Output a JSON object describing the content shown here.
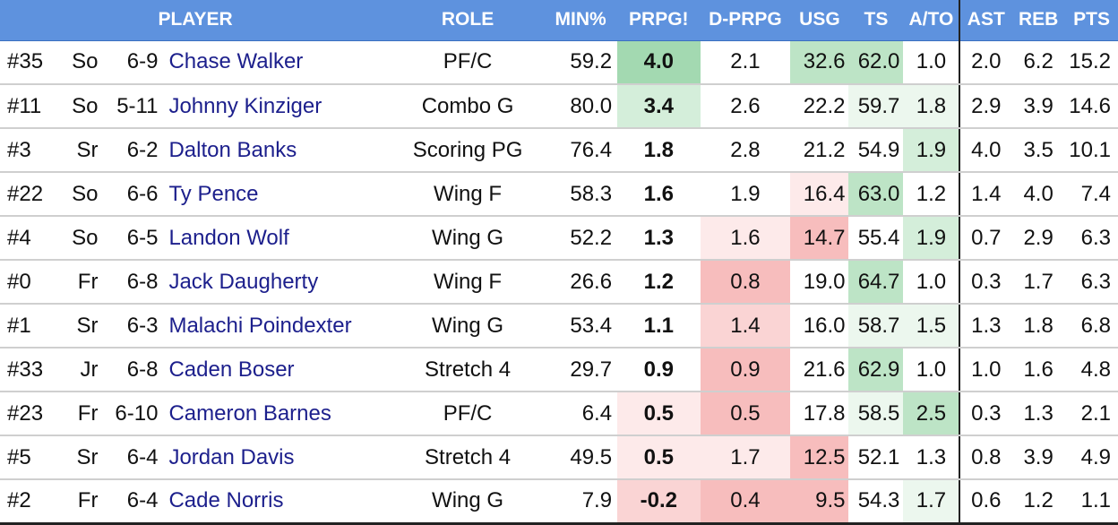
{
  "headers": {
    "player": "PLAYER",
    "role": "ROLE",
    "min": "MIN%",
    "prpg": "PRPG!",
    "dprpg": "D-PRPG",
    "usg": "USG",
    "ts": "TS",
    "ato": "A/TO",
    "ast": "AST",
    "reb": "REB",
    "pts": "PTS"
  },
  "colors": {
    "header_bg": "#5e92de",
    "name_link": "#1c1f8c",
    "good_shades": [
      "#ffffff",
      "#ecf7ee",
      "#d4eeda",
      "#bde4c6",
      "#a3d9b1"
    ],
    "bad_shades": [
      "#ffffff",
      "#fdeaea",
      "#fad4d4",
      "#f7bdbd",
      "#f4a8a8"
    ]
  },
  "rows": [
    {
      "num": "#35",
      "cls": "So",
      "ht": "6-9",
      "name": "Chase Walker",
      "role": "PF/C",
      "min": "59.2",
      "prpg": "4.0",
      "dprpg": "2.1",
      "usg": "32.6",
      "ts": "62.0",
      "ato": "1.0",
      "ast": "2.0",
      "reb": "6.2",
      "pts": "15.2"
    },
    {
      "num": "#11",
      "cls": "So",
      "ht": "5-11",
      "name": "Johnny Kinziger",
      "role": "Combo G",
      "min": "80.0",
      "prpg": "3.4",
      "dprpg": "2.6",
      "usg": "22.2",
      "ts": "59.7",
      "ato": "1.8",
      "ast": "2.9",
      "reb": "3.9",
      "pts": "14.6"
    },
    {
      "num": "#3",
      "cls": "Sr",
      "ht": "6-2",
      "name": "Dalton Banks",
      "role": "Scoring PG",
      "min": "76.4",
      "prpg": "1.8",
      "dprpg": "2.8",
      "usg": "21.2",
      "ts": "54.9",
      "ato": "1.9",
      "ast": "4.0",
      "reb": "3.5",
      "pts": "10.1"
    },
    {
      "num": "#22",
      "cls": "So",
      "ht": "6-6",
      "name": "Ty Pence",
      "role": "Wing F",
      "min": "58.3",
      "prpg": "1.6",
      "dprpg": "1.9",
      "usg": "16.4",
      "ts": "63.0",
      "ato": "1.2",
      "ast": "1.4",
      "reb": "4.0",
      "pts": "7.4"
    },
    {
      "num": "#4",
      "cls": "So",
      "ht": "6-5",
      "name": "Landon Wolf",
      "role": "Wing G",
      "min": "52.2",
      "prpg": "1.3",
      "dprpg": "1.6",
      "usg": "14.7",
      "ts": "55.4",
      "ato": "1.9",
      "ast": "0.7",
      "reb": "2.9",
      "pts": "6.3"
    },
    {
      "num": "#0",
      "cls": "Fr",
      "ht": "6-8",
      "name": "Jack Daugherty",
      "role": "Wing F",
      "min": "26.6",
      "prpg": "1.2",
      "dprpg": "0.8",
      "usg": "19.0",
      "ts": "64.7",
      "ato": "1.0",
      "ast": "0.3",
      "reb": "1.7",
      "pts": "6.3"
    },
    {
      "num": "#1",
      "cls": "Sr",
      "ht": "6-3",
      "name": "Malachi Poindexter",
      "role": "Wing G",
      "min": "53.4",
      "prpg": "1.1",
      "dprpg": "1.4",
      "usg": "16.0",
      "ts": "58.7",
      "ato": "1.5",
      "ast": "1.3",
      "reb": "1.8",
      "pts": "6.8"
    },
    {
      "num": "#33",
      "cls": "Jr",
      "ht": "6-8",
      "name": "Caden Boser",
      "role": "Stretch 4",
      "min": "29.7",
      "prpg": "0.9",
      "dprpg": "0.9",
      "usg": "21.6",
      "ts": "62.9",
      "ato": "1.0",
      "ast": "1.0",
      "reb": "1.6",
      "pts": "4.8"
    },
    {
      "num": "#23",
      "cls": "Fr",
      "ht": "6-10",
      "name": "Cameron Barnes",
      "role": "PF/C",
      "min": "6.4",
      "prpg": "0.5",
      "dprpg": "0.5",
      "usg": "17.8",
      "ts": "58.5",
      "ato": "2.5",
      "ast": "0.3",
      "reb": "1.3",
      "pts": "2.1"
    },
    {
      "num": "#5",
      "cls": "Sr",
      "ht": "6-4",
      "name": "Jordan Davis",
      "role": "Stretch 4",
      "min": "49.5",
      "prpg": "0.5",
      "dprpg": "1.7",
      "usg": "12.5",
      "ts": "52.1",
      "ato": "1.3",
      "ast": "0.8",
      "reb": "3.9",
      "pts": "4.9"
    },
    {
      "num": "#2",
      "cls": "Fr",
      "ht": "6-4",
      "name": "Cade Norris",
      "role": "Wing G",
      "min": "7.9",
      "prpg": "-0.2",
      "dprpg": "0.4",
      "usg": "9.5",
      "ts": "54.3",
      "ato": "1.7",
      "ast": "0.6",
      "reb": "1.2",
      "pts": "1.1"
    }
  ],
  "shading": {
    "prpg": [
      "g4",
      "g2",
      "",
      "",
      "",
      "",
      "",
      "",
      "b1",
      "b1",
      "b2"
    ],
    "dprpg": [
      "",
      "",
      "",
      "",
      "b1",
      "b3",
      "b2",
      "b3",
      "b3",
      "b1",
      "b3"
    ],
    "usg": [
      "g3",
      "",
      "",
      "b1",
      "b3",
      "",
      "",
      "",
      "",
      "b3",
      "b3"
    ],
    "ts": [
      "g3",
      "g1",
      "",
      "g3",
      "",
      "g3",
      "g1",
      "g3",
      "g1",
      "",
      ""
    ],
    "ato": [
      "",
      "g1",
      "g2",
      "",
      "g2",
      "",
      "g1",
      "",
      "g3",
      "",
      "g1"
    ]
  }
}
